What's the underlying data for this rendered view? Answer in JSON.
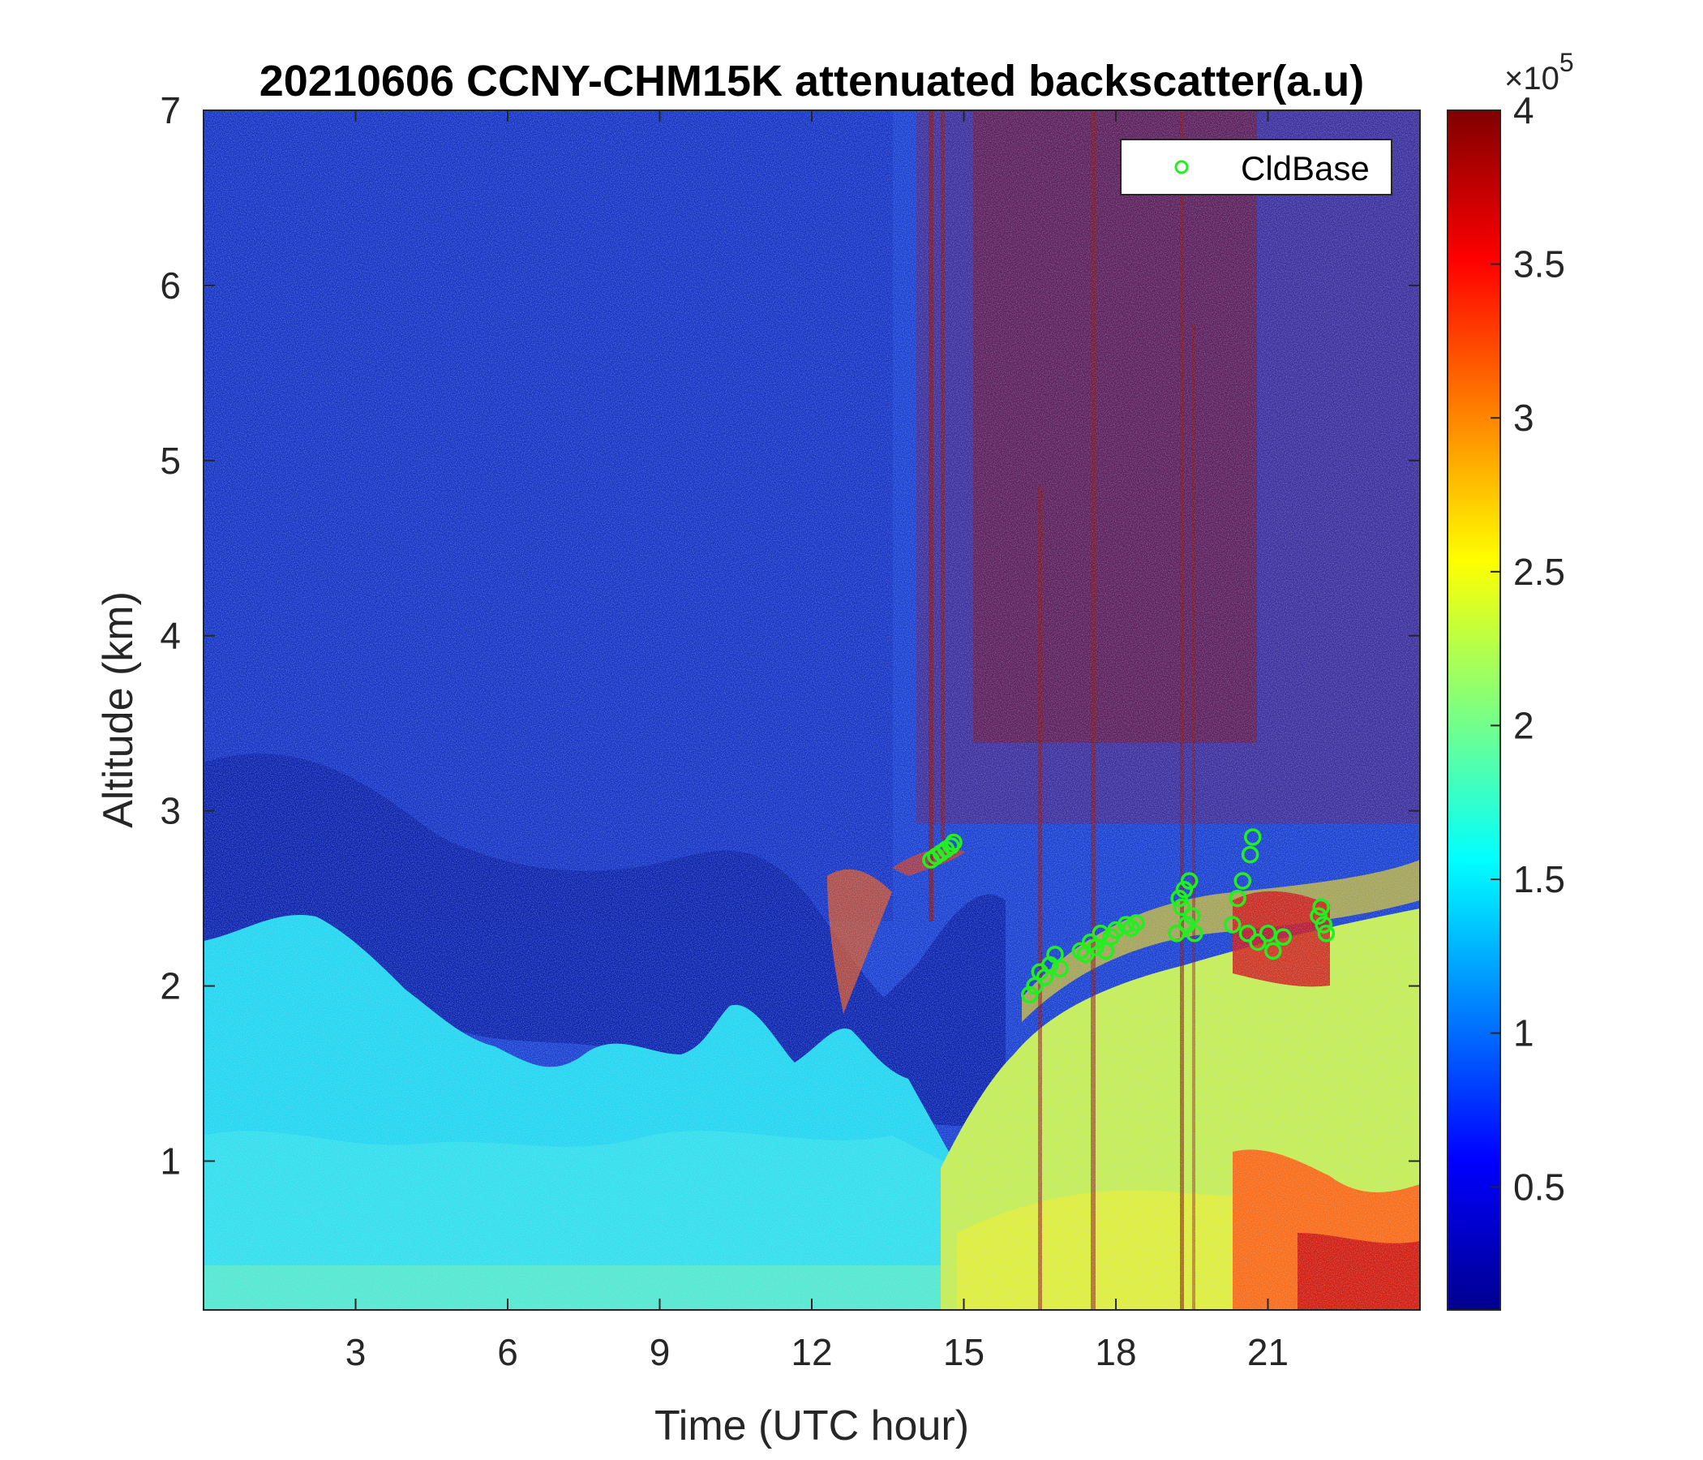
{
  "chart_data": {
    "type": "heatmap",
    "title": "20210606 CCNY-CHM15K attenuated backscatter(a.u)",
    "xlabel": "Time (UTC hour)",
    "ylabel": "Altitude (km)",
    "xlim": [
      0,
      24
    ],
    "ylim": [
      0.15,
      7
    ],
    "x_ticks": [
      3,
      6,
      9,
      12,
      15,
      18,
      21
    ],
    "y_ticks": [
      1,
      2,
      3,
      4,
      5,
      6,
      7
    ],
    "colormap": "jet",
    "colorbar": {
      "range": [
        0.1,
        4
      ],
      "ticks": [
        0.5,
        1,
        1.5,
        2,
        2.5,
        3,
        3.5,
        4
      ],
      "tick_labels": [
        "0.5",
        "1",
        "1.5",
        "2",
        "2.5",
        "3",
        "3.5",
        "4"
      ],
      "multiplier_base": "×10",
      "multiplier_exp": "5"
    },
    "legend": {
      "position": "top-right",
      "entries": [
        "CldBase"
      ]
    },
    "series": [
      {
        "name": "CldBase",
        "type": "scatter",
        "marker": "circle",
        "color": "#22ee22",
        "x": [
          14.35,
          14.45,
          14.55,
          14.65,
          14.75,
          14.8,
          16.3,
          16.4,
          16.5,
          16.6,
          16.7,
          16.8,
          16.9,
          17.3,
          17.4,
          17.5,
          17.6,
          17.7,
          17.8,
          17.9,
          18.0,
          18.2,
          18.3,
          18.4,
          19.2,
          19.25,
          19.3,
          19.35,
          19.4,
          19.45,
          19.5,
          19.55,
          20.3,
          20.4,
          20.5,
          20.6,
          20.65,
          20.7,
          20.8,
          21.0,
          21.1,
          21.3,
          22.0,
          22.05,
          22.1,
          22.15
        ],
        "y": [
          2.72,
          2.74,
          2.76,
          2.78,
          2.8,
          2.82,
          1.95,
          2.0,
          2.08,
          2.05,
          2.12,
          2.18,
          2.1,
          2.2,
          2.18,
          2.25,
          2.22,
          2.3,
          2.2,
          2.28,
          2.32,
          2.35,
          2.33,
          2.36,
          2.3,
          2.5,
          2.45,
          2.55,
          2.35,
          2.6,
          2.4,
          2.3,
          2.35,
          2.5,
          2.6,
          2.3,
          2.75,
          2.85,
          2.25,
          2.3,
          2.2,
          2.28,
          2.4,
          2.45,
          2.35,
          2.3
        ]
      }
    ]
  }
}
